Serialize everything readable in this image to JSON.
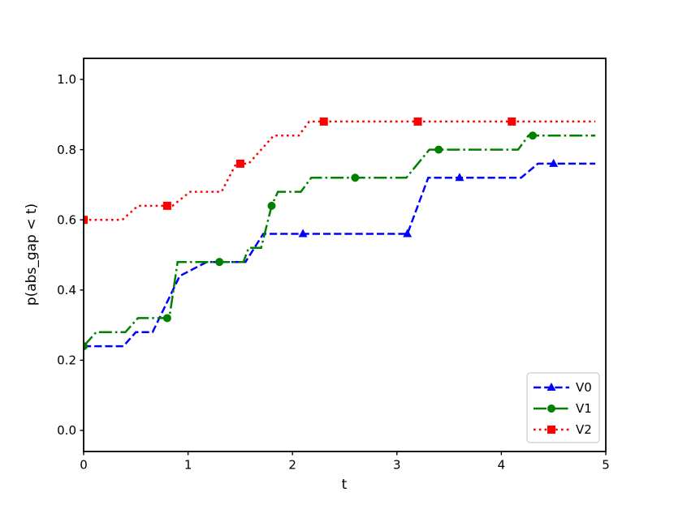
{
  "figure": {
    "background": "#ffffff",
    "text_color": "#000000",
    "spine_color": "#000000"
  },
  "chart_data": {
    "type": "line",
    "title": "",
    "xlabel": "t",
    "ylabel": "p(abs_gap < t)",
    "xlim": [
      0,
      5
    ],
    "ylim": [
      -0.06,
      1.06
    ],
    "xticks": [
      0,
      1,
      2,
      3,
      4,
      5
    ],
    "xtick_labels": [
      "0",
      "1",
      "2",
      "3",
      "4",
      "5"
    ],
    "yticks": [
      0.0,
      0.2,
      0.4,
      0.6,
      0.8,
      1.0
    ],
    "ytick_labels": [
      "0.0",
      "0.2",
      "0.4",
      "0.6",
      "0.8",
      "1.0"
    ],
    "grid": false,
    "legend_position": "lower right",
    "series": [
      {
        "name": "V0",
        "color": "#0000ff",
        "linestyle": "dashed",
        "marker": "triangle",
        "points": [
          [
            0,
            0.24
          ],
          [
            0.38,
            0.24
          ],
          [
            0.5,
            0.28
          ],
          [
            0.66,
            0.28
          ],
          [
            0.92,
            0.44
          ],
          [
            1.05,
            0.46
          ],
          [
            1.18,
            0.48
          ],
          [
            1.55,
            0.48
          ],
          [
            1.72,
            0.56
          ],
          [
            3.1,
            0.56
          ],
          [
            3.3,
            0.72
          ],
          [
            4.19,
            0.72
          ],
          [
            4.35,
            0.76
          ],
          [
            4.9,
            0.76
          ]
        ],
        "markers_at": [
          [
            2.1,
            0.56
          ],
          [
            3.1,
            0.56
          ],
          [
            3.6,
            0.72
          ],
          [
            4.5,
            0.76
          ]
        ]
      },
      {
        "name": "V1",
        "color": "#008000",
        "linestyle": "dashdot",
        "marker": "circle",
        "points": [
          [
            0,
            0.24
          ],
          [
            0.12,
            0.28
          ],
          [
            0.4,
            0.28
          ],
          [
            0.52,
            0.32
          ],
          [
            0.82,
            0.32
          ],
          [
            0.9,
            0.48
          ],
          [
            1.53,
            0.48
          ],
          [
            1.58,
            0.52
          ],
          [
            1.7,
            0.52
          ],
          [
            1.8,
            0.64
          ],
          [
            1.86,
            0.68
          ],
          [
            2.08,
            0.68
          ],
          [
            2.18,
            0.72
          ],
          [
            3.09,
            0.72
          ],
          [
            3.31,
            0.8
          ],
          [
            4.16,
            0.8
          ],
          [
            4.26,
            0.84
          ],
          [
            4.9,
            0.84
          ]
        ],
        "markers_at": [
          [
            0,
            0.24
          ],
          [
            0.8,
            0.32
          ],
          [
            1.3,
            0.48
          ],
          [
            1.8,
            0.64
          ],
          [
            2.6,
            0.72
          ],
          [
            3.4,
            0.8
          ],
          [
            4.3,
            0.84
          ]
        ]
      },
      {
        "name": "V2",
        "color": "#ff0000",
        "linestyle": "dotted",
        "marker": "square",
        "points": [
          [
            0,
            0.6
          ],
          [
            0.37,
            0.6
          ],
          [
            0.52,
            0.64
          ],
          [
            0.85,
            0.64
          ],
          [
            1.02,
            0.68
          ],
          [
            1.32,
            0.68
          ],
          [
            1.46,
            0.76
          ],
          [
            1.58,
            0.76
          ],
          [
            1.82,
            0.84
          ],
          [
            2.06,
            0.84
          ],
          [
            2.16,
            0.88
          ],
          [
            4.9,
            0.88
          ]
        ],
        "markers_at": [
          [
            0,
            0.6
          ],
          [
            0.8,
            0.64
          ],
          [
            1.5,
            0.76
          ],
          [
            2.3,
            0.88
          ],
          [
            3.2,
            0.88
          ],
          [
            4.1,
            0.88
          ]
        ]
      }
    ]
  }
}
